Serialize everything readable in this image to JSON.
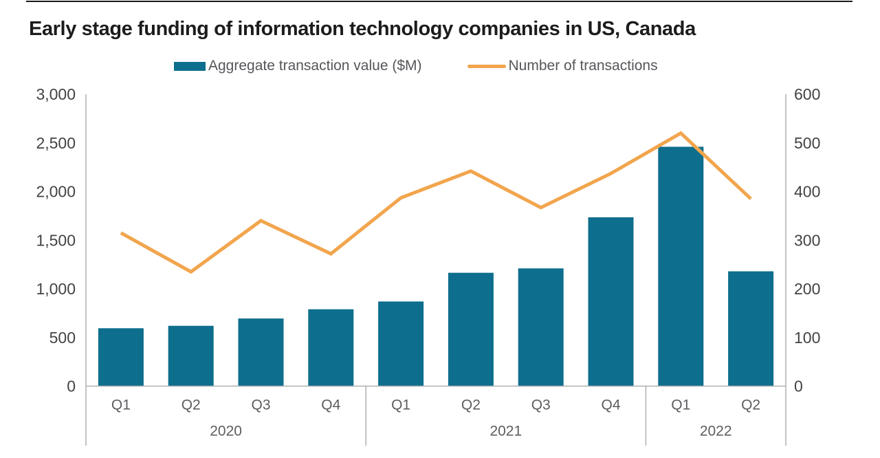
{
  "title": "Early stage funding of information technology companies in US, Canada",
  "legend": {
    "bar_label": "Aggregate transaction value ($M)",
    "line_label": "Number of transactions"
  },
  "colors": {
    "bar": "#0e6e8d",
    "line": "#f2a54d",
    "axis_line": "#aeb0b3",
    "top_rule": "#1a1a1a",
    "title_text": "#1c1c1c",
    "tick_text": "#424345",
    "category_text": "#5c5d60",
    "legend_text": "#55565a"
  },
  "chart_data": {
    "type": "combo_bar_line",
    "title": "Early stage funding of information technology companies in US, Canada",
    "categories": [
      "Q1",
      "Q2",
      "Q3",
      "Q4",
      "Q1",
      "Q2",
      "Q3",
      "Q4",
      "Q1",
      "Q2"
    ],
    "year_groups": [
      {
        "label": "2020",
        "quarters": 4
      },
      {
        "label": "2021",
        "quarters": 4
      },
      {
        "label": "2022",
        "quarters": 2
      }
    ],
    "series": [
      {
        "name": "Aggregate transaction value ($M)",
        "type": "bar",
        "axis": "left",
        "values": [
          595,
          620,
          695,
          790,
          870,
          1165,
          1210,
          1735,
          2460,
          1180
        ]
      },
      {
        "name": "Number of transactions",
        "type": "line",
        "axis": "right",
        "values": [
          315,
          235,
          340,
          272,
          387,
          442,
          367,
          437,
          520,
          385
        ]
      }
    ],
    "left_axis": {
      "min": 0,
      "max": 3000,
      "tick_step": 500,
      "tick_labels": [
        "0",
        "500",
        "1,000",
        "1,500",
        "2,000",
        "2,500",
        "3,000"
      ]
    },
    "right_axis": {
      "min": 0,
      "max": 600,
      "tick_step": 100,
      "tick_labels": [
        "0",
        "100",
        "200",
        "300",
        "400",
        "500",
        "600"
      ]
    },
    "gridlines": false,
    "legend_position": "top"
  }
}
